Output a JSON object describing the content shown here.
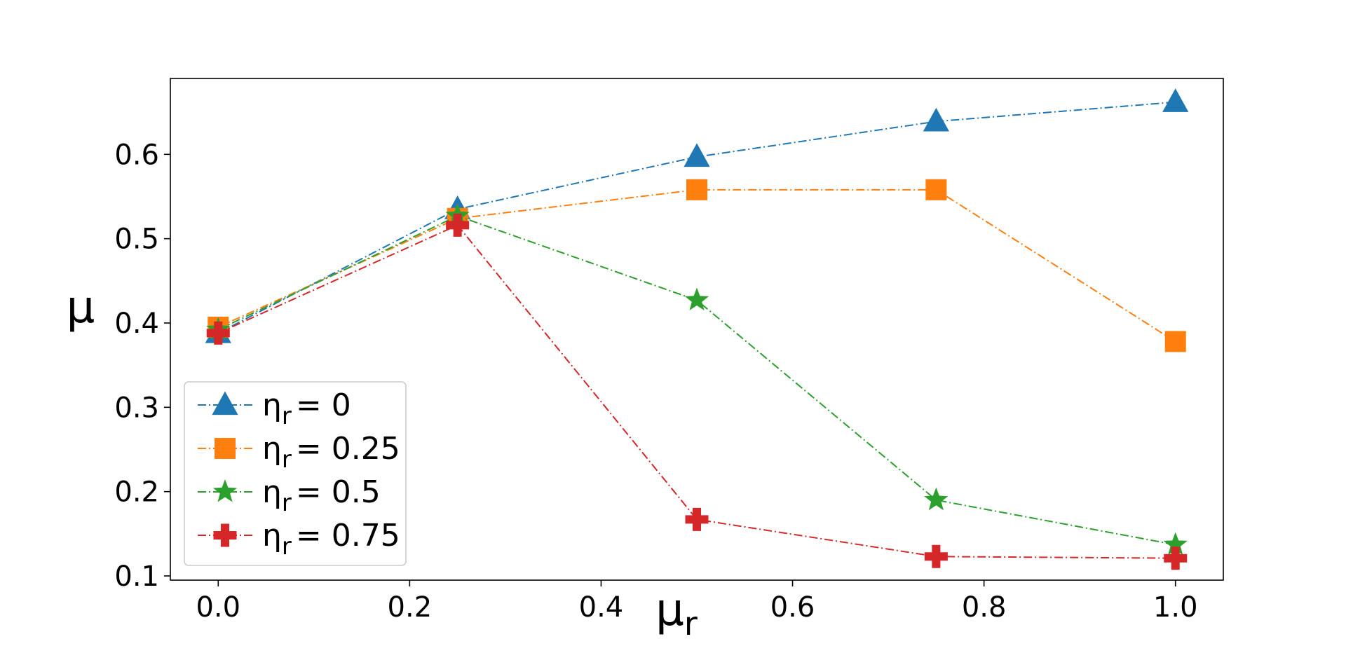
{
  "chart_data": {
    "type": "line",
    "title": "",
    "xlabel": "μ",
    "xlabel_sub": "r",
    "ylabel": "μ",
    "x": [
      0.0,
      0.25,
      0.5,
      0.75,
      1.0
    ],
    "xlim": [
      -0.05,
      1.05
    ],
    "ylim": [
      0.095,
      0.69
    ],
    "xticks": [
      "0.0",
      "0.2",
      "0.4",
      "0.6",
      "0.8",
      "1.0"
    ],
    "xtick_values": [
      0.0,
      0.2,
      0.4,
      0.6,
      0.8,
      1.0
    ],
    "yticks": [
      "0.1",
      "0.2",
      "0.3",
      "0.4",
      "0.5",
      "0.6"
    ],
    "ytick_values": [
      0.1,
      0.2,
      0.3,
      0.4,
      0.5,
      0.6
    ],
    "grid": false,
    "legend_placement": "lower-left",
    "line_style": "dash-dot",
    "series": [
      {
        "label_main": "η",
        "label_sub": "r",
        "label_rest": "= 0",
        "color": "#1f77b4",
        "marker": "triangle",
        "values": [
          0.388,
          0.535,
          0.597,
          0.639,
          0.662
        ]
      },
      {
        "label_main": "η",
        "label_sub": "r",
        "label_rest": "= 0.25",
        "color": "#ff7f0e",
        "marker": "square",
        "values": [
          0.395,
          0.524,
          0.558,
          0.558,
          0.378
        ]
      },
      {
        "label_main": "η",
        "label_sub": "r",
        "label_rest": "= 0.5",
        "color": "#2ca02c",
        "marker": "star",
        "values": [
          0.392,
          0.527,
          0.427,
          0.19,
          0.137
        ]
      },
      {
        "label_main": "η",
        "label_sub": "r",
        "label_rest": "= 0.75",
        "color": "#d62728",
        "marker": "plus",
        "values": [
          0.388,
          0.516,
          0.167,
          0.123,
          0.121
        ]
      }
    ]
  }
}
